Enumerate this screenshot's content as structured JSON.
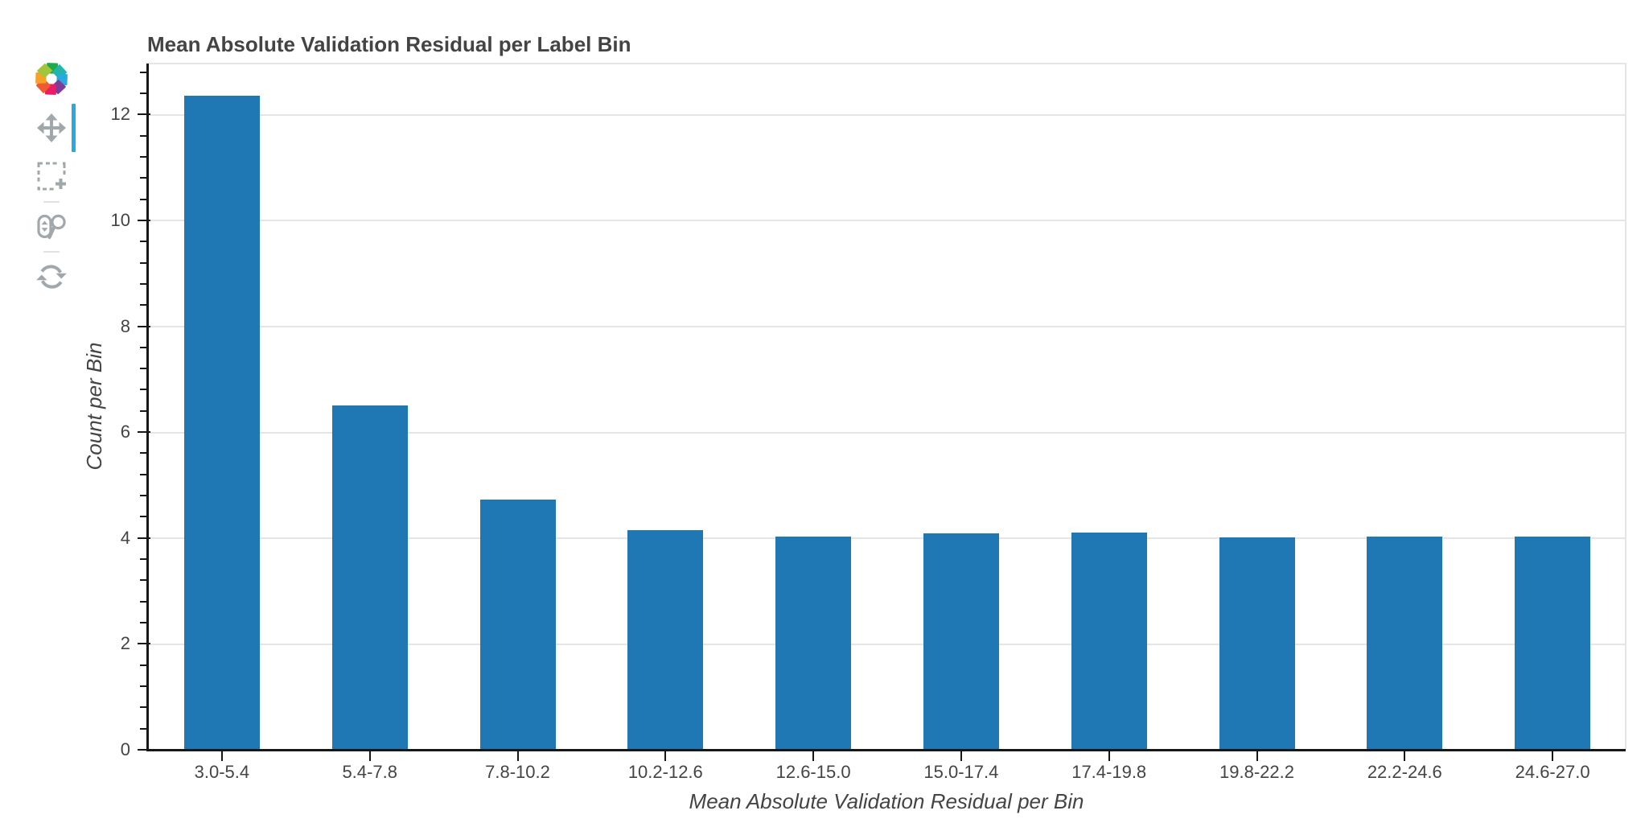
{
  "chart_data": {
    "type": "bar",
    "title": "Mean Absolute Validation Residual per Label Bin",
    "xlabel": "Mean Absolute Validation Residual per Bin",
    "ylabel": "Count per Bin",
    "categories": [
      "3.0-5.4",
      "5.4-7.8",
      "7.8-10.2",
      "10.2-12.6",
      "12.6-15.0",
      "15.0-17.4",
      "17.4-19.8",
      "19.8-22.2",
      "22.2-24.6",
      "24.6-27.0"
    ],
    "values": [
      12.35,
      6.5,
      4.72,
      4.15,
      4.03,
      4.09,
      4.11,
      4.01,
      4.03,
      4.02
    ],
    "yticks": [
      0,
      2,
      4,
      6,
      8,
      10,
      12
    ],
    "minor_tick_step": 0.4,
    "ylim": [
      0,
      12.96
    ],
    "grid": "horizontal-major",
    "legend": "none",
    "colors": {
      "bar_fill": "#1f77b4",
      "grid_line": "#e5e5e5",
      "outline": "#e5e5e5",
      "axis_line": "#171717",
      "text": "#444444"
    }
  },
  "toolbar": {
    "location": "left",
    "logo_icon": "bokeh-logo",
    "active_indicator_color": "#26aae1",
    "icon_color": "#a1a8ac",
    "tools": [
      {
        "id": "pan",
        "icon": "pan-arrows-icon",
        "active": true
      },
      {
        "id": "box-zoom",
        "icon": "box-zoom-icon",
        "active": false
      },
      {
        "id": "wheel-zoom",
        "icon": "wheel-zoom-icon",
        "active": false
      },
      {
        "id": "reset",
        "icon": "reset-refresh-icon",
        "active": false
      }
    ]
  }
}
